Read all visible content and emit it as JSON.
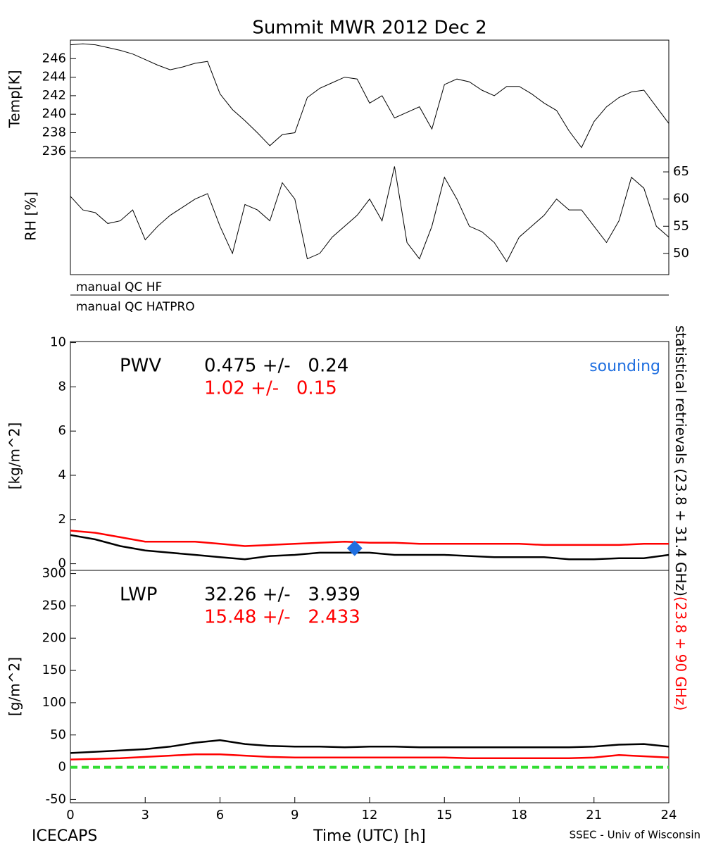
{
  "chart_data": [
    {
      "type": "line",
      "title": "Summit MWR 2012 Dec  2",
      "ylabel": "Temp[K]",
      "y_axis_side": "left",
      "xlim": [
        0,
        24
      ],
      "ylim": [
        235.3,
        248
      ],
      "yticks": [
        236,
        238,
        240,
        242,
        244,
        246
      ],
      "x": [
        0,
        0.5,
        1,
        1.5,
        2,
        2.5,
        3,
        3.5,
        4,
        4.5,
        5,
        5.5,
        6,
        6.5,
        7,
        7.5,
        8,
        8.5,
        9,
        9.5,
        10,
        10.5,
        11,
        11.5,
        12,
        12.5,
        13,
        13.5,
        14,
        14.5,
        15,
        15.5,
        16,
        16.5,
        17,
        17.5,
        18,
        18.5,
        19,
        19.5,
        20,
        20.5,
        21,
        21.5,
        22,
        22.5,
        23,
        23.5,
        24
      ],
      "series": [
        {
          "color": "#000000",
          "values": [
            247.5,
            247.6,
            247.5,
            247.2,
            246.9,
            246.5,
            245.9,
            245.3,
            244.8,
            245.1,
            245.5,
            245.7,
            242.2,
            240.5,
            239.3,
            238,
            236.6,
            237.8,
            238,
            241.8,
            242.8,
            243.4,
            244,
            243.8,
            241.2,
            242,
            239.6,
            240.2,
            240.8,
            238.4,
            243.2,
            243.8,
            243.5,
            242.6,
            242,
            243,
            243,
            242.2,
            241.2,
            240.4,
            238.2,
            236.4,
            239.2,
            240.8,
            241.8,
            242.4,
            242.6,
            240.8,
            239
          ]
        }
      ]
    },
    {
      "type": "line",
      "ylabel": "RH [%]",
      "y_axis_side": "right",
      "xlim": [
        0,
        24
      ],
      "ylim": [
        46.1,
        67.6
      ],
      "yticks": [
        50,
        55,
        60,
        65
      ],
      "x": [
        0,
        0.5,
        1,
        1.5,
        2,
        2.5,
        3,
        3.5,
        4,
        4.5,
        5,
        5.5,
        6,
        6.5,
        7,
        7.5,
        8,
        8.5,
        9,
        9.5,
        10,
        10.5,
        11,
        11.5,
        12,
        12.5,
        13,
        13.5,
        14,
        14.5,
        15,
        15.5,
        16,
        16.5,
        17,
        17.5,
        18,
        18.5,
        19,
        19.5,
        20,
        20.5,
        21,
        21.5,
        22,
        22.5,
        23,
        23.5,
        24
      ],
      "series": [
        {
          "color": "#000000",
          "values": [
            60.5,
            58,
            57.5,
            55.5,
            56,
            58,
            52.5,
            55,
            57,
            58.5,
            60,
            61,
            55,
            50,
            59,
            58,
            56,
            63,
            60,
            49,
            50,
            53,
            55,
            57,
            60,
            56,
            66,
            52,
            49,
            55,
            64,
            60,
            55,
            54,
            52,
            48.5,
            53,
            55,
            57,
            60,
            58,
            58,
            55,
            52,
            56,
            64,
            62,
            55,
            53
          ]
        }
      ],
      "qc_labels": [
        "manual QC HF",
        "manual QC HATPRO"
      ]
    },
    {
      "type": "line",
      "ylabel": "[kg/m^2]",
      "y_axis_side": "left",
      "xlim": [
        0,
        24
      ],
      "ylim": [
        -0.3,
        10.05
      ],
      "yticks": [
        0,
        2,
        4,
        6,
        8,
        10
      ],
      "x": [
        0,
        1,
        2,
        3,
        4,
        5,
        6,
        7,
        8,
        9,
        10,
        11,
        12,
        13,
        14,
        15,
        16,
        17,
        18,
        19,
        20,
        21,
        22,
        23,
        24
      ],
      "series": [
        {
          "color": "#000000",
          "values": [
            1.3,
            1.1,
            0.8,
            0.6,
            0.5,
            0.4,
            0.3,
            0.2,
            0.35,
            0.4,
            0.5,
            0.5,
            0.5,
            0.4,
            0.4,
            0.4,
            0.35,
            0.3,
            0.3,
            0.3,
            0.2,
            0.2,
            0.25,
            0.25,
            0.4
          ]
        },
        {
          "color": "#ff0000",
          "values": [
            1.5,
            1.4,
            1.2,
            1.0,
            1.0,
            1.0,
            0.9,
            0.8,
            0.85,
            0.9,
            0.95,
            1.0,
            0.95,
            0.95,
            0.9,
            0.9,
            0.9,
            0.9,
            0.9,
            0.85,
            0.85,
            0.85,
            0.85,
            0.9,
            0.9
          ]
        }
      ],
      "markers": [
        {
          "name": "sounding",
          "x": 11.4,
          "y": 0.7,
          "color": "#1f6fe0"
        }
      ],
      "annotations": [
        {
          "text": "PWV",
          "color": "#000000"
        },
        {
          "text": "0.475 +/-   0.24",
          "color": "#000000"
        },
        {
          "text": "1.02 +/-   0.15",
          "color": "#ff0000"
        }
      ]
    },
    {
      "type": "line",
      "ylabel": "[g/m^2]",
      "xlabel": "Time (UTC) [h]",
      "y_axis_side": "left",
      "xlim": [
        0,
        24
      ],
      "ylim": [
        -55,
        305
      ],
      "yticks": [
        -50,
        0,
        50,
        100,
        150,
        200,
        250,
        300
      ],
      "xticks": [
        0,
        3,
        6,
        9,
        12,
        15,
        18,
        21,
        24
      ],
      "x": [
        0,
        1,
        2,
        3,
        4,
        5,
        6,
        7,
        8,
        9,
        10,
        11,
        12,
        13,
        14,
        15,
        16,
        17,
        18,
        19,
        20,
        21,
        22,
        23,
        24
      ],
      "series": [
        {
          "color": "#000000",
          "values": [
            22,
            24,
            26,
            28,
            32,
            38,
            42,
            36,
            33,
            32,
            32,
            31,
            32,
            32,
            31,
            31,
            31,
            31,
            31,
            31,
            31,
            32,
            35,
            36,
            32
          ]
        },
        {
          "color": "#ff0000",
          "values": [
            12,
            13,
            14,
            16,
            18,
            20,
            20,
            18,
            16,
            15,
            15,
            15,
            15,
            15,
            15,
            15,
            14,
            14,
            14,
            14,
            14,
            15,
            19,
            17,
            15
          ]
        }
      ],
      "zero_line": {
        "value": 0,
        "color": "#33dd33"
      },
      "annotations": [
        {
          "text": "LWP",
          "color": "#000000"
        },
        {
          "text": "32.26 +/-   3.939",
          "color": "#000000"
        },
        {
          "text": "15.48 +/-   2.433",
          "color": "#ff0000"
        }
      ],
      "side_labels": [
        {
          "text": "statistical retrievals (23.8 + 31.4 GHz)",
          "color": "#000000"
        },
        {
          "text": "(23.8 + 90 GHz)",
          "color": "#ff0000"
        }
      ],
      "footer": [
        "ICECAPS",
        "SSEC - Univ of Wisconsin"
      ]
    }
  ]
}
